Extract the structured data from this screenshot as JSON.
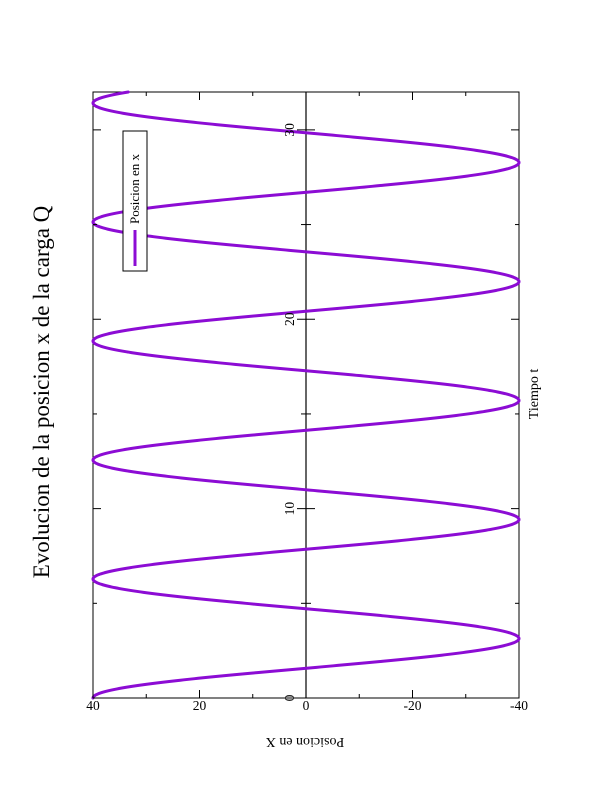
{
  "chart_data": {
    "type": "line",
    "title": "Evolucion de la posicion x de la carga Q",
    "xlabel": "Tiempo t",
    "ylabel": "Posicion en X",
    "xlim": [
      0,
      32
    ],
    "ylim": [
      -40,
      40
    ],
    "x_major_ticks": [
      0,
      10,
      20,
      30
    ],
    "x_minor_ticks": [
      5,
      15,
      25
    ],
    "y_major_ticks": [
      40,
      20,
      0,
      -20,
      -40
    ],
    "y_minor_ticks": [
      30,
      10,
      -10,
      -30
    ],
    "x_tick_labels": [
      "0",
      "10",
      "20",
      "30"
    ],
    "y_tick_labels": [
      "40",
      "20",
      "0",
      "-20",
      "-40"
    ],
    "legend_position": "top-right",
    "grid": false,
    "series": [
      {
        "name": "Posicion en x",
        "color": "#8c0cd4",
        "function": "40*cos(t)",
        "amplitude": 40,
        "angular_frequency": 1,
        "x": [
          0,
          3.1416,
          6.2832,
          9.4248,
          12.5664,
          15.708,
          18.8496,
          21.9911,
          25.1327,
          28.2743,
          31.4159
        ],
        "y": [
          40,
          -40,
          40,
          -40,
          40,
          -40,
          40,
          -40,
          40,
          -40,
          40
        ]
      }
    ]
  }
}
